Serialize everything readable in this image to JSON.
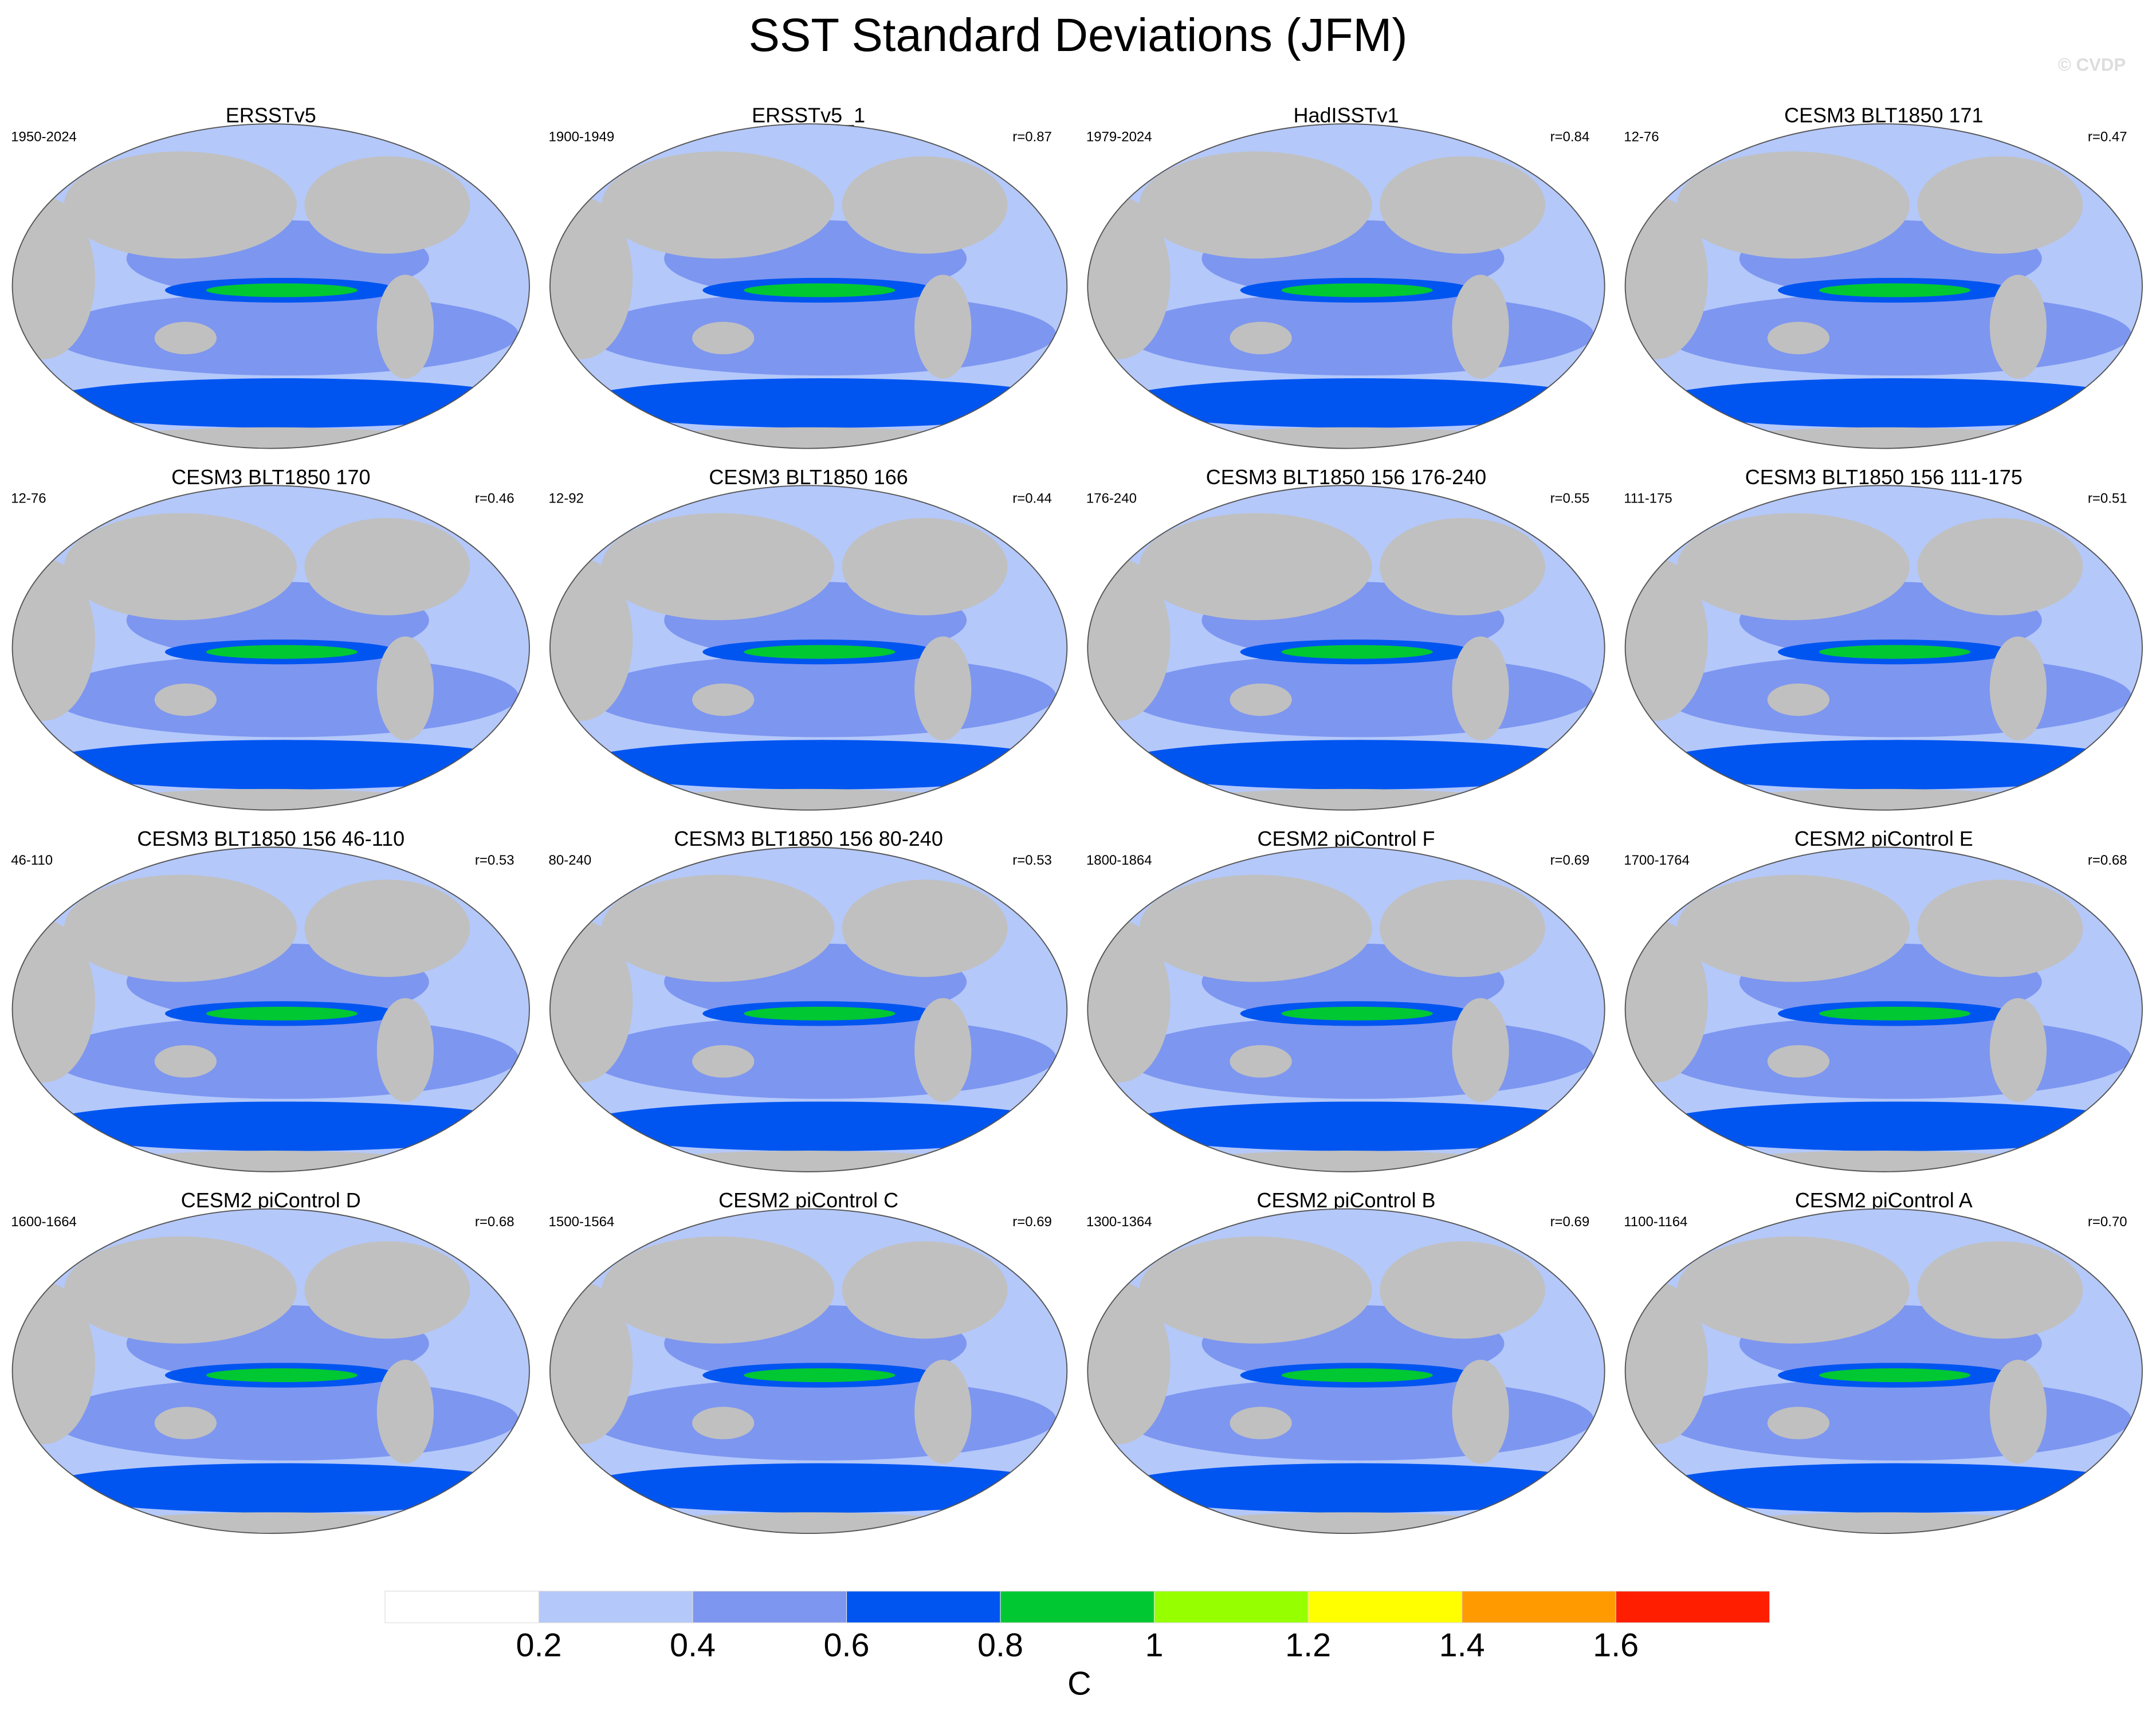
{
  "title": "SST Standard Deviations (JFM)",
  "watermark": "© CVDP",
  "panels": [
    {
      "title": "ERSSTv5",
      "period": "1950-2024"
    },
    {
      "title": "ERSSTv5_1",
      "period": "1900-1949",
      "r": "r=0.87"
    },
    {
      "title": "HadISSTv1",
      "period": "1979-2024",
      "r": "r=0.84"
    },
    {
      "title": "CESM3 BLT1850 171",
      "period": "12-76",
      "r": "r=0.47"
    },
    {
      "title": "CESM3 BLT1850 170",
      "period": "12-76",
      "r": "r=0.46"
    },
    {
      "title": "CESM3 BLT1850 166",
      "period": "12-92",
      "r": "r=0.44"
    },
    {
      "title": "CESM3 BLT1850 156 176-240",
      "period": "176-240",
      "r": "r=0.55"
    },
    {
      "title": "CESM3 BLT1850 156 111-175",
      "period": "111-175",
      "r": "r=0.51"
    },
    {
      "title": "CESM3 BLT1850 156 46-110",
      "period": "46-110",
      "r": "r=0.53"
    },
    {
      "title": "CESM3 BLT1850 156 80-240",
      "period": "80-240",
      "r": "r=0.53"
    },
    {
      "title": "CESM2 piControl F",
      "period": "1800-1864",
      "r": "r=0.69"
    },
    {
      "title": "CESM2 piControl E",
      "period": "1700-1764",
      "r": "r=0.68"
    },
    {
      "title": "CESM2 piControl D",
      "period": "1600-1664",
      "r": "r=0.68"
    },
    {
      "title": "CESM2 piControl C",
      "period": "1500-1564",
      "r": "r=0.69"
    },
    {
      "title": "CESM2 piControl B",
      "period": "1300-1364",
      "r": "r=0.69"
    },
    {
      "title": "CESM2 piControl A",
      "period": "1100-1164",
      "r": "r=0.70"
    }
  ],
  "colorbar": {
    "ticks": [
      0.2,
      0.4,
      0.6,
      0.8,
      1,
      1.2,
      1.4,
      1.6
    ],
    "colors": [
      "#ffffff",
      "#b4c8fa",
      "#7d96f0",
      "#0055f0",
      "#00c832",
      "#96ff00",
      "#ffff00",
      "#ff9b00",
      "#ff1e00"
    ],
    "unit": "C"
  }
}
